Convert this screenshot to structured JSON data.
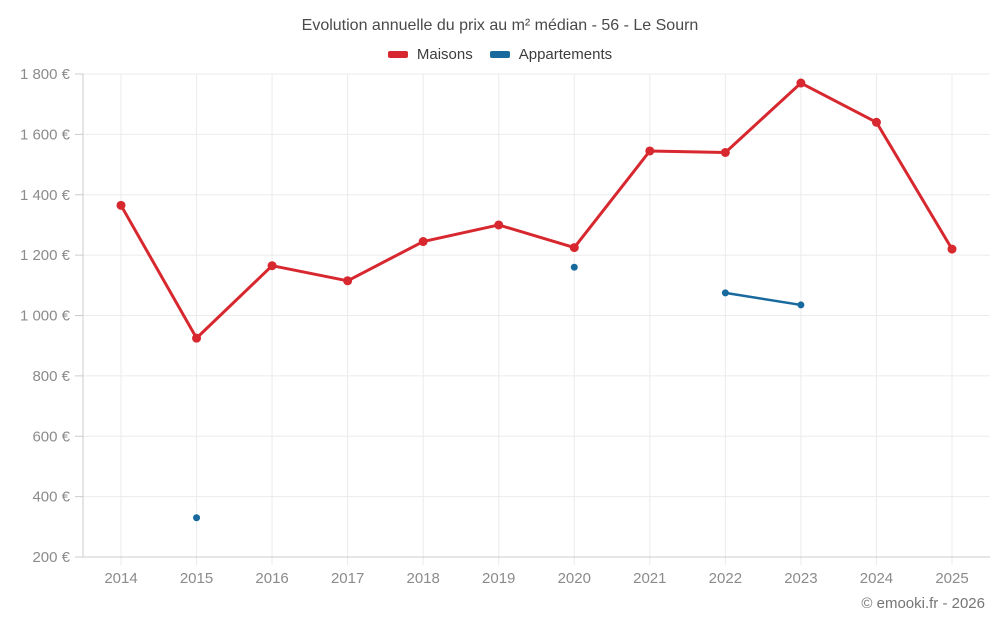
{
  "chart_data": {
    "type": "line",
    "title": "Evolution annuelle du prix au m² médian - 56 - Le Sourn",
    "categories": [
      "2014",
      "2015",
      "2016",
      "2017",
      "2018",
      "2019",
      "2020",
      "2021",
      "2022",
      "2023",
      "2024",
      "2025"
    ],
    "series": [
      {
        "name": "Maisons",
        "color": "#d7282f",
        "values": [
          1365,
          925,
          1165,
          1115,
          1245,
          1300,
          1225,
          1545,
          1540,
          1770,
          1640,
          1220
        ]
      },
      {
        "name": "Appartements",
        "color": "#17699e",
        "values": [
          null,
          330,
          null,
          null,
          null,
          null,
          1160,
          null,
          1075,
          1035,
          null,
          null
        ]
      }
    ],
    "ylim": [
      200,
      1800
    ],
    "ytick_step": 200,
    "ytick_labels": [
      "200 €",
      "400 €",
      "600 €",
      "800 €",
      "1 000 €",
      "1 200 €",
      "1 400 €",
      "1 600 €",
      "1 800 €"
    ],
    "ylabel": "",
    "xlabel": "",
    "grid": true,
    "legend_position": "top"
  },
  "footer": {
    "copyright": "© emooki.fr - 2026"
  }
}
